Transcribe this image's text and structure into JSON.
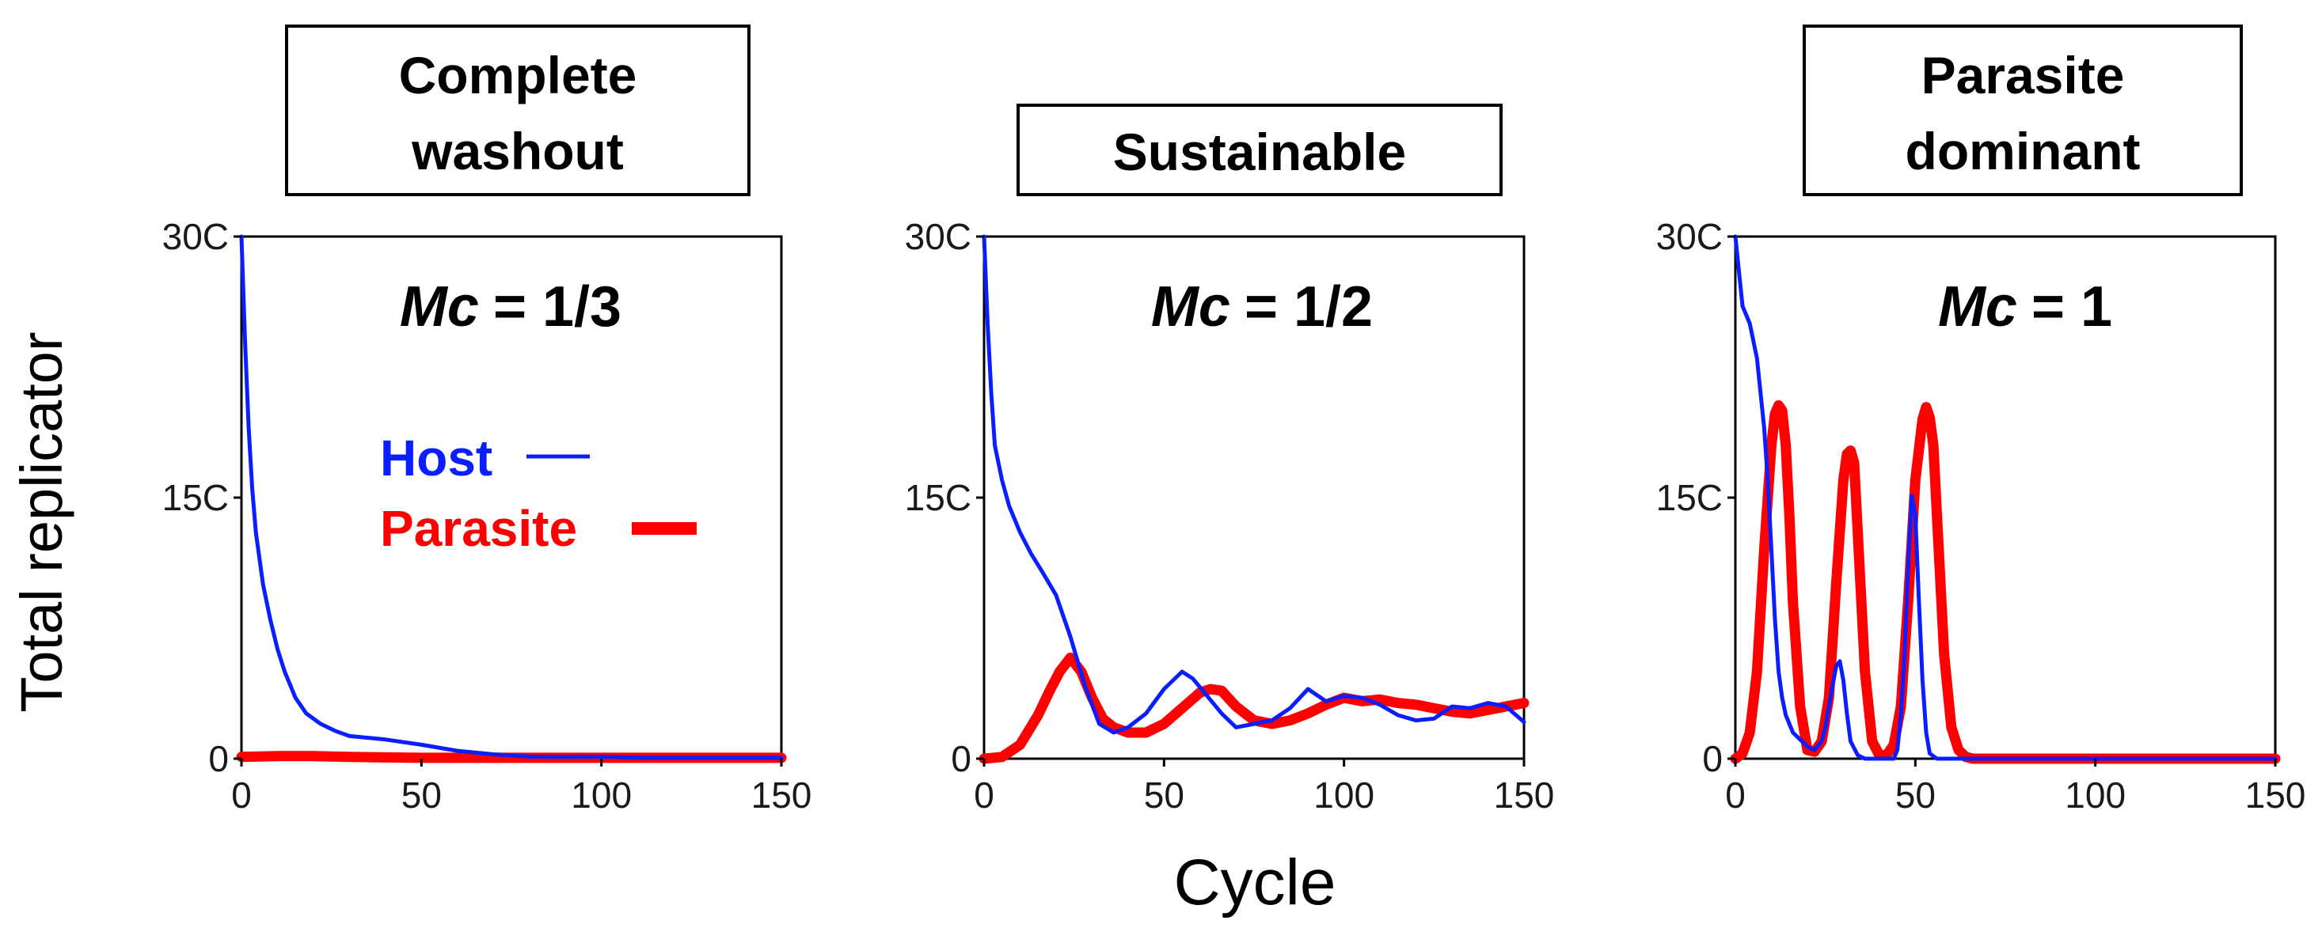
{
  "figure": {
    "ylabel": "Total replicator",
    "xlabel": "Cycle",
    "legend": {
      "host_label": "Host",
      "parasite_label": "Parasite",
      "placement": "left-panel-center"
    },
    "colors": {
      "host": "#0a1eff",
      "parasite": "#ff0000"
    }
  },
  "chart_data": [
    {
      "type": "line",
      "title_lines": [
        "Complete",
        "washout"
      ],
      "mc_symbol": "Mc",
      "mc_value": "= 1/3",
      "xlim": [
        0,
        150
      ],
      "ylim": [
        0,
        30
      ],
      "xticks": [
        "0",
        "50",
        "100",
        "150"
      ],
      "yticks": [
        "0",
        "15C",
        "30C"
      ],
      "series": [
        {
          "name": "Host",
          "x": [
            0,
            1,
            2,
            3,
            4,
            6,
            8,
            10,
            12,
            15,
            18,
            22,
            26,
            30,
            40,
            50,
            60,
            70,
            80,
            90,
            100,
            110,
            120,
            150
          ],
          "y": [
            30,
            24,
            19,
            15.5,
            13,
            10,
            8,
            6.3,
            5,
            3.5,
            2.6,
            2,
            1.6,
            1.3,
            1.1,
            0.8,
            0.45,
            0.25,
            0.12,
            0.1,
            0.12,
            0.06,
            0.05,
            0.05
          ]
        },
        {
          "name": "Parasite",
          "x": [
            0,
            10,
            20,
            30,
            50,
            100,
            150
          ],
          "y": [
            0.1,
            0.15,
            0.15,
            0.1,
            0.05,
            0.05,
            0.05
          ]
        }
      ]
    },
    {
      "type": "line",
      "title_lines": [
        "Sustainable"
      ],
      "mc_symbol": "Mc",
      "mc_value": "= 1/2",
      "xlim": [
        0,
        150
      ],
      "ylim": [
        0,
        30
      ],
      "xticks": [
        "0",
        "50",
        "100",
        "150"
      ],
      "yticks": [
        "0",
        "15C",
        "30C"
      ],
      "series": [
        {
          "name": "Host",
          "x": [
            0,
            1,
            2,
            3,
            5,
            7,
            10,
            13,
            16,
            20,
            24,
            28,
            32,
            36,
            40,
            45,
            50,
            55,
            58,
            62,
            66,
            70,
            75,
            80,
            85,
            90,
            95,
            100,
            105,
            110,
            115,
            120,
            125,
            130,
            135,
            140,
            145,
            150
          ],
          "y": [
            30,
            25,
            21,
            18,
            16,
            14.5,
            13,
            11.8,
            10.8,
            9.4,
            7,
            4.2,
            2,
            1.5,
            1.8,
            2.6,
            4,
            5,
            4.6,
            3.6,
            2.6,
            1.8,
            2,
            2.2,
            2.9,
            4,
            3.3,
            3.6,
            3.5,
            3.1,
            2.5,
            2.2,
            2.3,
            3,
            2.9,
            3.2,
            3,
            2.1
          ]
        },
        {
          "name": "Parasite",
          "x": [
            0,
            5,
            10,
            15,
            18,
            21,
            24,
            27,
            30,
            33,
            36,
            40,
            45,
            50,
            55,
            60,
            63,
            66,
            70,
            75,
            80,
            85,
            90,
            95,
            100,
            105,
            110,
            115,
            120,
            125,
            130,
            135,
            140,
            145,
            150
          ],
          "y": [
            0,
            0.1,
            0.8,
            2.5,
            3.8,
            5,
            5.8,
            5,
            3.5,
            2.3,
            1.8,
            1.5,
            1.5,
            2,
            2.9,
            3.8,
            4,
            3.9,
            3,
            2.2,
            2,
            2.2,
            2.6,
            3.1,
            3.5,
            3.3,
            3.4,
            3.2,
            3.1,
            2.9,
            2.7,
            2.6,
            2.8,
            3,
            3.2
          ]
        }
      ]
    },
    {
      "type": "line",
      "title_lines": [
        "Parasite",
        "dominant"
      ],
      "mc_symbol": "Mc",
      "mc_value": "= 1",
      "xlim": [
        0,
        150
      ],
      "ylim": [
        0,
        30
      ],
      "xticks": [
        "0",
        "50",
        "100",
        "150"
      ],
      "yticks": [
        "0",
        "15C",
        "30C"
      ],
      "series": [
        {
          "name": "Host",
          "x": [
            0,
            1,
            2,
            4,
            6,
            8,
            9,
            10,
            11,
            12,
            13,
            14,
            16,
            18,
            20,
            22,
            24,
            25,
            26,
            27,
            28,
            29,
            30,
            31,
            32,
            34,
            36,
            40,
            44,
            45,
            46,
            47,
            48,
            49,
            50,
            51,
            52,
            53,
            54,
            56,
            60,
            70,
            100,
            150
          ],
          "y": [
            30,
            28,
            26,
            25,
            23,
            19,
            16,
            12,
            8,
            5,
            3.5,
            2.5,
            1.5,
            1.1,
            0.7,
            0.5,
            1,
            1.8,
            3,
            4.2,
            5.3,
            5.6,
            4.5,
            2.6,
            1,
            0.2,
            0,
            0,
            0,
            0.5,
            2.5,
            6,
            11,
            15.1,
            14,
            9,
            4.5,
            1.5,
            0.3,
            0,
            0,
            0,
            0,
            0
          ]
        },
        {
          "name": "Parasite",
          "x": [
            0,
            2,
            4,
            6,
            8,
            10,
            11,
            12,
            13,
            14,
            15,
            16,
            18,
            20,
            22,
            24,
            26,
            28,
            30,
            31,
            32,
            33,
            34,
            36,
            38,
            40,
            42,
            44,
            46,
            48,
            50,
            52,
            53,
            54,
            55,
            56,
            58,
            60,
            62,
            64,
            66,
            70,
            100,
            150
          ],
          "y": [
            0,
            0.3,
            1.5,
            5,
            12,
            18,
            19.8,
            20.3,
            20,
            18,
            14,
            9,
            3,
            0.5,
            0.4,
            1,
            3.5,
            10,
            16,
            17.5,
            17.7,
            17,
            13,
            5,
            1,
            0.2,
            0.2,
            0.8,
            3,
            9,
            16,
            19.5,
            20.2,
            19.6,
            18,
            14,
            6,
            1.8,
            0.5,
            0.1,
            0,
            0,
            0,
            0
          ]
        }
      ]
    }
  ]
}
